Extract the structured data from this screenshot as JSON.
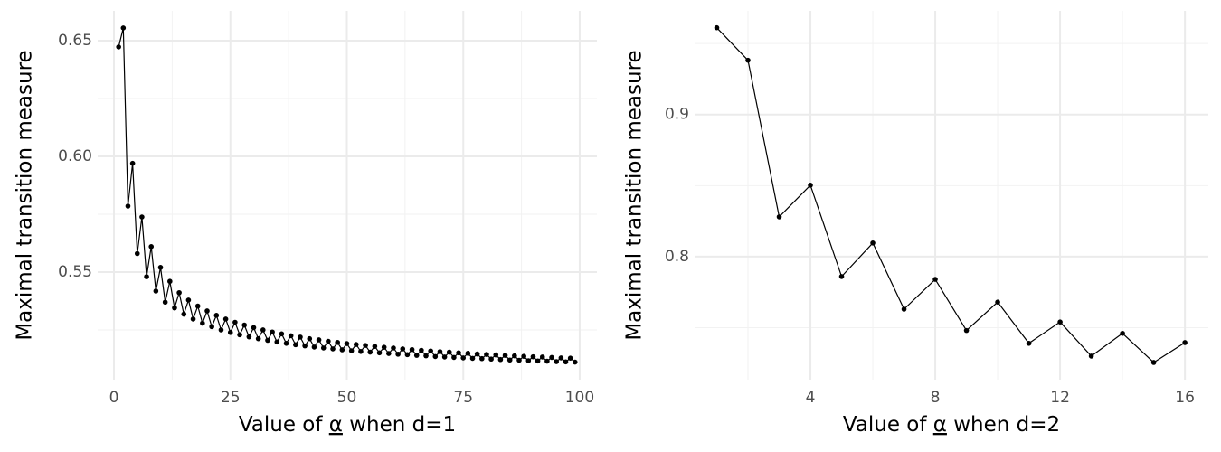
{
  "chart_data": [
    {
      "type": "line",
      "color": "#000000",
      "xlabel": [
        "Value of ",
        "α",
        " when d=1"
      ],
      "ylabel": "Maximal transition measure",
      "x": [
        1,
        2,
        3,
        4,
        5,
        6,
        7,
        8,
        9,
        10,
        11,
        12,
        13,
        14,
        15,
        16,
        17,
        18,
        19,
        20,
        21,
        22,
        23,
        24,
        25,
        26,
        27,
        28,
        29,
        30,
        31,
        32,
        33,
        34,
        35,
        36,
        37,
        38,
        39,
        40,
        41,
        42,
        43,
        44,
        45,
        46,
        47,
        48,
        49,
        50,
        51,
        52,
        53,
        54,
        55,
        56,
        57,
        58,
        59,
        60,
        61,
        62,
        63,
        64,
        65,
        66,
        67,
        68,
        69,
        70,
        71,
        72,
        73,
        74,
        75,
        76,
        77,
        78,
        79,
        80,
        81,
        82,
        83,
        84,
        85,
        86,
        87,
        88,
        89,
        90,
        91,
        92,
        93,
        94,
        95,
        96,
        97,
        98,
        99
      ],
      "values": [
        0.6473,
        0.6555,
        0.5785,
        0.597,
        0.558,
        0.5738,
        0.548,
        0.561,
        0.5418,
        0.552,
        0.537,
        0.546,
        0.5345,
        0.5411,
        0.5318,
        0.5379,
        0.5297,
        0.5353,
        0.5279,
        0.5332,
        0.5264,
        0.5313,
        0.525,
        0.5297,
        0.5239,
        0.5283,
        0.5229,
        0.5271,
        0.522,
        0.526,
        0.5212,
        0.525,
        0.5205,
        0.5241,
        0.5198,
        0.5233,
        0.5192,
        0.5225,
        0.5186,
        0.5219,
        0.5181,
        0.5212,
        0.5176,
        0.5207,
        0.5172,
        0.5201,
        0.5168,
        0.5196,
        0.5164,
        0.5191,
        0.516,
        0.5187,
        0.5157,
        0.5183,
        0.5154,
        0.5179,
        0.5151,
        0.5175,
        0.5148,
        0.5172,
        0.5145,
        0.5168,
        0.5143,
        0.5165,
        0.514,
        0.5162,
        0.5138,
        0.5159,
        0.5135,
        0.5156,
        0.5133,
        0.5154,
        0.5131,
        0.5151,
        0.5129,
        0.5149,
        0.5127,
        0.5146,
        0.5126,
        0.5144,
        0.5124,
        0.5142,
        0.5122,
        0.514,
        0.512,
        0.5138,
        0.5119,
        0.5136,
        0.5117,
        0.5134,
        0.5116,
        0.5133,
        0.5115,
        0.5131,
        0.5113,
        0.5129,
        0.5112,
        0.5128,
        0.5111
      ],
      "xlim": [
        -3.5,
        103.7
      ],
      "ylim": [
        0.5035,
        0.6629
      ],
      "xticks": [
        0,
        25,
        50,
        75,
        100
      ],
      "x_minor_ticks": [
        12.5,
        37.5,
        62.5,
        87.5
      ],
      "yticks": [
        0.55,
        {
          "value": 0.6,
          "label": "0.60"
        },
        0.65
      ],
      "y_minor_ticks": [
        0.525,
        0.575,
        0.625
      ],
      "grid": true
    },
    {
      "type": "line",
      "color": "#000000",
      "xlabel": [
        "Value of ",
        "α",
        " when d=2"
      ],
      "ylabel": "Maximal transition measure",
      "x": [
        1,
        2,
        3,
        4,
        5,
        6,
        7,
        8,
        9,
        10,
        11,
        12,
        13,
        14,
        15,
        16
      ],
      "values": [
        0.9611,
        0.9382,
        0.828,
        0.8503,
        0.786,
        0.8096,
        0.763,
        0.784,
        0.748,
        0.768,
        0.739,
        0.754,
        0.73,
        0.746,
        0.7255,
        0.7395
      ],
      "xlim": [
        0.29,
        16.75
      ],
      "ylim": [
        0.7134,
        0.973
      ],
      "xticks": [
        4,
        8,
        12,
        16
      ],
      "x_minor_ticks": [
        2,
        6,
        10,
        14
      ],
      "yticks": [
        0.8,
        0.9
      ],
      "y_minor_ticks": [
        0.75,
        0.85,
        0.95
      ],
      "grid": true
    }
  ]
}
